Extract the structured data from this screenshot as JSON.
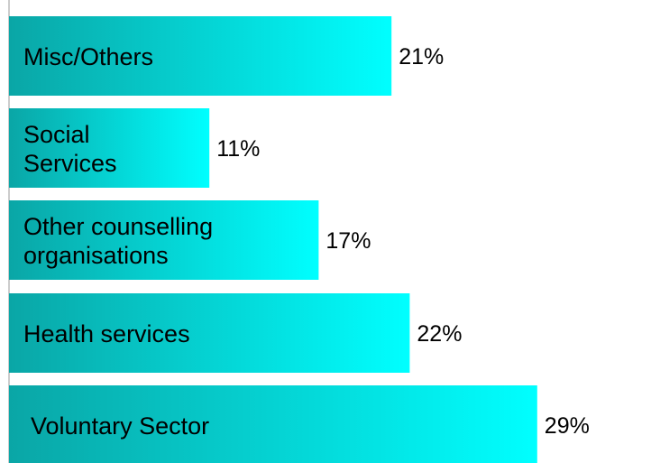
{
  "chart_data": {
    "type": "bar",
    "orientation": "horizontal",
    "categories": [
      "Misc/Others",
      "Social Services",
      "Other counselling organisations",
      "Health services",
      "Voluntary Sector"
    ],
    "category_lines": [
      [
        "Misc/Others"
      ],
      [
        "Social",
        "Services"
      ],
      [
        "Other counselling",
        "organisations"
      ],
      [
        "Health services"
      ],
      [
        "Voluntary Sector"
      ]
    ],
    "values": [
      21,
      11,
      17,
      22,
      29
    ],
    "value_labels": [
      "21%",
      "11%",
      "17%",
      "22%",
      "29%"
    ],
    "unit": "%",
    "title": "",
    "xlabel": "",
    "ylabel": "",
    "grid": false,
    "legend": "none",
    "colors": {
      "bar_gradient_start": "#0aa6a6",
      "bar_gradient_end": "#00ffff",
      "axis": "#999999"
    }
  }
}
